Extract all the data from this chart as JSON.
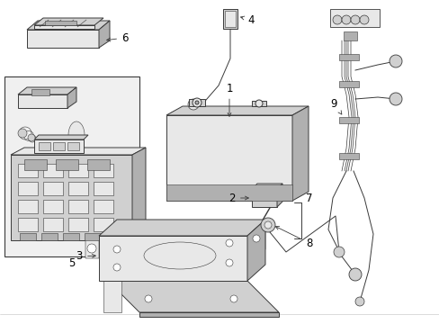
{
  "bg_color": "#ffffff",
  "line_color": "#3a3a3a",
  "fig_width": 4.89,
  "fig_height": 3.6,
  "dpi": 100,
  "label_fontsize": 8.5,
  "lw_main": 0.7,
  "lw_thin": 0.4,
  "lw_thick": 1.0,
  "gray_fill": "#e8e8e8",
  "gray_mid": "#d0d0d0",
  "gray_dark": "#b0b0b0",
  "white": "#ffffff",
  "light_bg": "#f0f0f0"
}
